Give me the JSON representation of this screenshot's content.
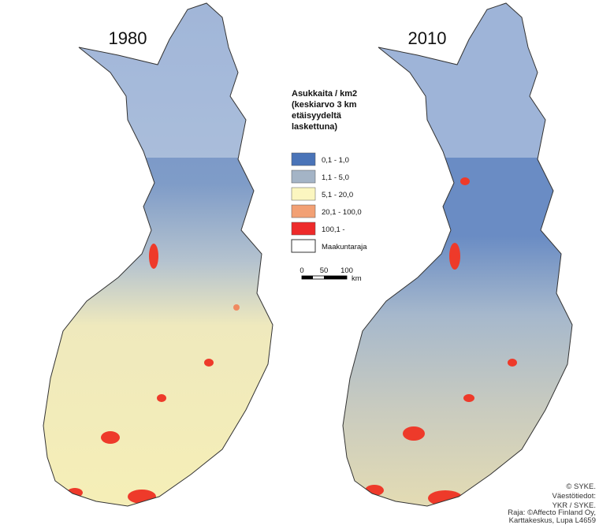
{
  "maps": [
    {
      "year": "1980"
    },
    {
      "year": "2010"
    }
  ],
  "legend": {
    "title": [
      "Asukkaita / km2",
      "(keskiarvo 3 km",
      "etäisyydeltä",
      "laskettuna)"
    ],
    "items": [
      "0,1 - 1,0",
      "1,1 - 5,0",
      "5,1 - 20,0",
      "20,1 - 100,0",
      "100,1 -",
      "Maakuntaraja"
    ]
  },
  "scale": {
    "labels": [
      "0",
      "50",
      "100"
    ],
    "unit": "km"
  },
  "credits": [
    "© SYKE.",
    "Väestötiedot:",
    "YKR / SYKE.",
    "Raja: ©Affecto Finland Oy,",
    "Karttakeskus, Lupa L4659"
  ]
}
